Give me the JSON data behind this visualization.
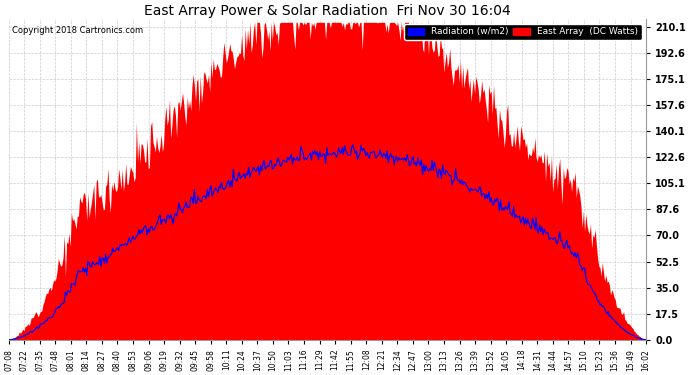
{
  "title": "East Array Power & Solar Radiation  Fri Nov 30 16:04",
  "copyright": "Copyright 2018 Cartronics.com",
  "yticks": [
    0.0,
    17.5,
    35.0,
    52.5,
    70.0,
    87.6,
    105.1,
    122.6,
    140.1,
    157.6,
    175.1,
    192.6,
    210.1
  ],
  "ymax": 215,
  "ymin": 0,
  "bg_color": "#ffffff",
  "plot_bg_color": "#ffffff",
  "grid_color": "#cccccc",
  "fill_color": "#ff0000",
  "line_color": "#0000ff",
  "legend_labels": [
    "Radiation (w/m2)",
    "East Array  (DC Watts)"
  ],
  "legend_colors": [
    "#0000ff",
    "#ff0000"
  ],
  "xtick_labels": [
    "07:08",
    "07:22",
    "07:35",
    "07:48",
    "08:01",
    "08:14",
    "08:27",
    "08:40",
    "08:53",
    "09:06",
    "09:19",
    "09:32",
    "09:45",
    "09:58",
    "10:11",
    "10:24",
    "10:37",
    "10:50",
    "11:03",
    "11:16",
    "11:29",
    "11:42",
    "11:55",
    "12:08",
    "12:21",
    "12:34",
    "12:47",
    "13:00",
    "13:13",
    "13:26",
    "13:39",
    "13:52",
    "14:05",
    "14:18",
    "14:31",
    "14:44",
    "14:57",
    "15:10",
    "15:23",
    "15:36",
    "15:49",
    "16:02"
  ],
  "figsize": [
    6.9,
    3.75
  ],
  "dpi": 100
}
